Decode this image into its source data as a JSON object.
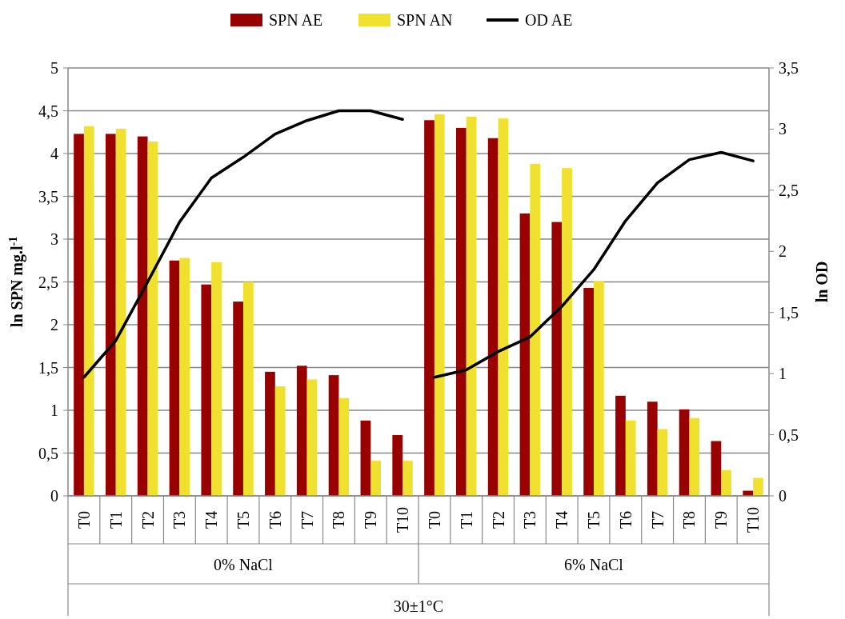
{
  "chart_data": {
    "type": "bar",
    "ylabel": "ln SPN mg.l$^{-1}$",
    "y2label": "ln OD",
    "categories": [
      "T0",
      "T1",
      "T2",
      "T3",
      "T4",
      "T5",
      "T6",
      "T7",
      "T8",
      "T9",
      "T10",
      "T0",
      "T1",
      "T2",
      "T3",
      "T4",
      "T5",
      "T6",
      "T7",
      "T8",
      "T9",
      "T10"
    ],
    "series": [
      {
        "name": "SPN AE",
        "color": "#990000",
        "values": [
          4.23,
          4.23,
          4.2,
          2.75,
          2.47,
          2.27,
          1.45,
          1.52,
          1.41,
          0.88,
          0.71,
          4.39,
          4.3,
          4.18,
          3.3,
          3.2,
          2.43,
          1.17,
          1.1,
          1.01,
          0.64,
          0.06
        ]
      },
      {
        "name": "SPN AN",
        "color": "#f0e130",
        "values": [
          4.32,
          4.29,
          4.14,
          2.78,
          2.73,
          2.5,
          1.28,
          1.36,
          1.14,
          0.41,
          0.41,
          4.46,
          4.43,
          4.41,
          3.88,
          3.83,
          2.51,
          0.88,
          0.78,
          0.91,
          0.3,
          0.21
        ]
      },
      {
        "name": "OD AE",
        "type": "line",
        "axis": "y2",
        "color": "#000000",
        "values": [
          0.97,
          1.27,
          1.75,
          2.24,
          2.6,
          2.77,
          2.96,
          3.07,
          3.15,
          3.15,
          3.08,
          null,
          null,
          null,
          null,
          null,
          null,
          null,
          null,
          null,
          null,
          null
        ]
      },
      {
        "type": "line",
        "axis": "y2",
        "color": "#000000",
        "values": [
          null,
          null,
          null,
          null,
          null,
          null,
          null,
          null,
          null,
          null,
          null,
          0.97,
          1.03,
          1.18,
          1.3,
          1.55,
          1.85,
          2.25,
          2.56,
          2.75,
          2.81,
          2.74
        ]
      }
    ],
    "ylim": [
      0,
      5
    ],
    "yticks": [
      0,
      {
        "value": 0.5,
        "label": "0,5"
      },
      1,
      {
        "value": 1.5,
        "label": "1,5"
      },
      2,
      {
        "value": 2.5,
        "label": "2,5"
      },
      3,
      {
        "value": 3.5,
        "label": "3,5"
      },
      4,
      {
        "value": 4.5,
        "label": "4,5"
      },
      5
    ],
    "y2lim": [
      0,
      3.5
    ],
    "y2ticks": [
      0,
      {
        "value": 0.5,
        "label": "0,5"
      },
      1,
      {
        "value": 1.5,
        "label": "1,5"
      },
      2,
      {
        "value": 2.5,
        "label": "2,5"
      },
      3,
      {
        "value": 3.5,
        "label": "3,5"
      }
    ],
    "annotations": [
      "0% NaCl",
      "6% NaCl",
      "30±1°C"
    ],
    "grid": "y",
    "legend": "top",
    "line_style": "solid",
    "marker": "none"
  }
}
